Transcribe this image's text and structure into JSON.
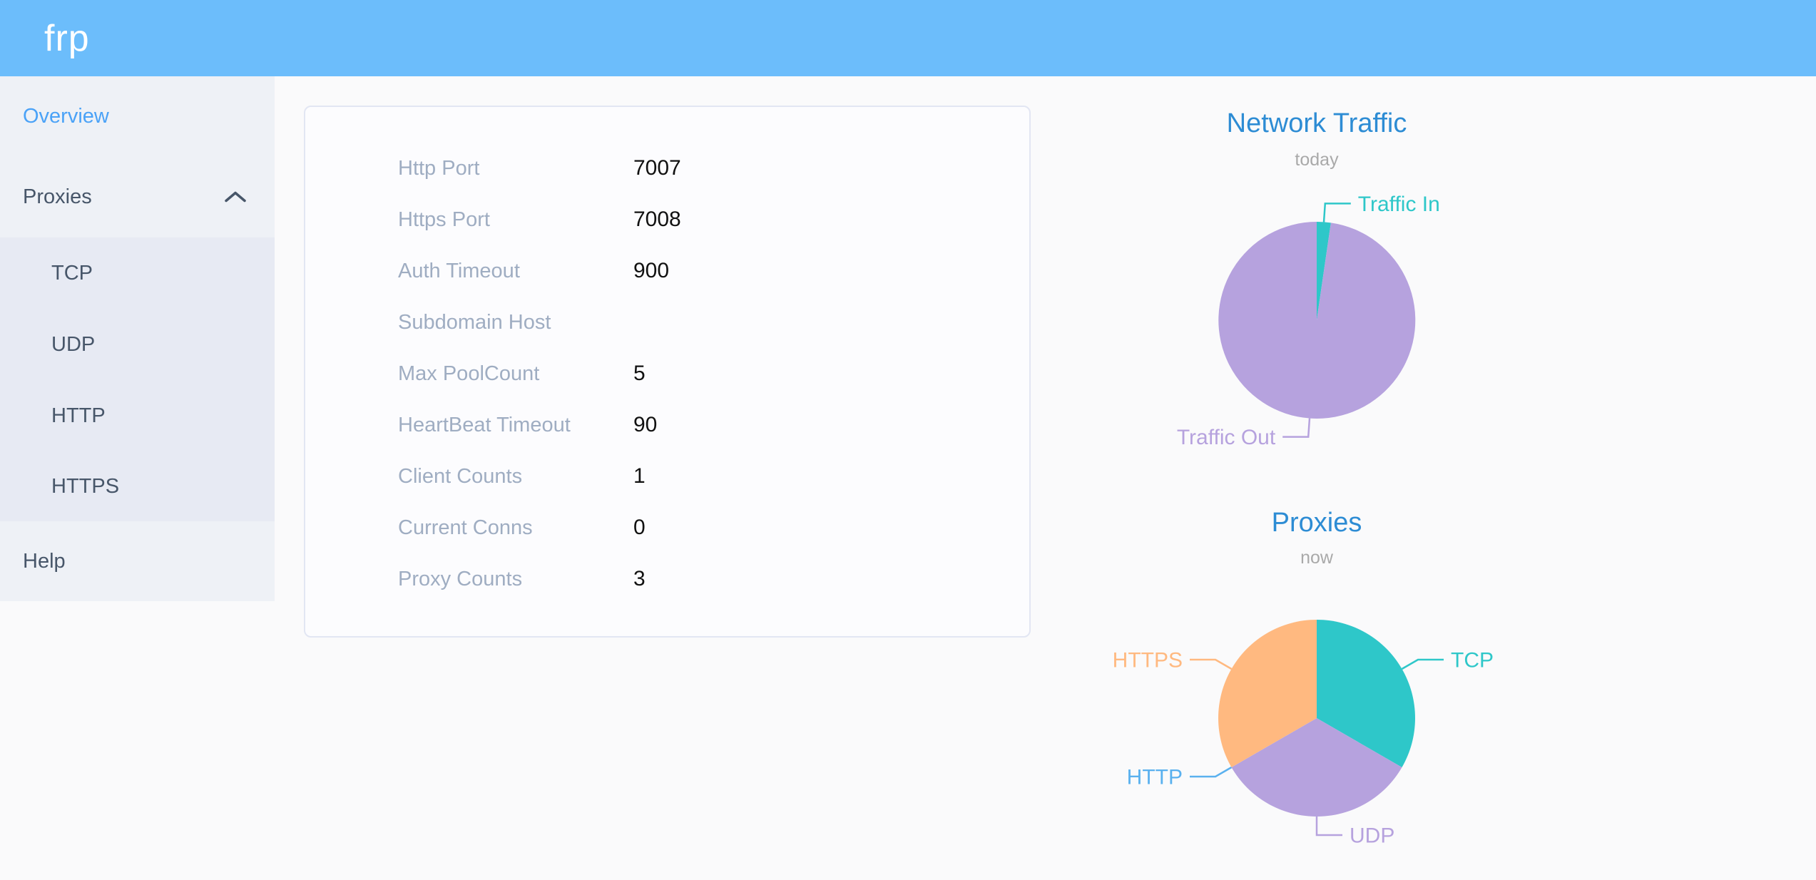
{
  "header": {
    "logo": "frp"
  },
  "sidebar": {
    "items": [
      {
        "label": "Overview",
        "active": true
      },
      {
        "label": "Proxies",
        "expanded": true,
        "children": [
          "TCP",
          "UDP",
          "HTTP",
          "HTTPS"
        ]
      },
      {
        "label": "Help"
      }
    ]
  },
  "overview_card": {
    "rows": [
      {
        "label": "Http Port",
        "value": "7007"
      },
      {
        "label": "Https Port",
        "value": "7008"
      },
      {
        "label": "Auth Timeout",
        "value": "900"
      },
      {
        "label": "Subdomain Host",
        "value": ""
      },
      {
        "label": "Max PoolCount",
        "value": "5"
      },
      {
        "label": "HeartBeat Timeout",
        "value": "90"
      },
      {
        "label": "Client Counts",
        "value": "1"
      },
      {
        "label": "Current Conns",
        "value": "0"
      },
      {
        "label": "Proxy Counts",
        "value": "3"
      }
    ]
  },
  "chart_data": [
    {
      "type": "pie",
      "title": "Network Traffic",
      "subtitle": "today",
      "legend_position": "outside-callout",
      "series": [
        {
          "name": "Traffic In",
          "value": 2.3,
          "color": "#2ec7c9"
        },
        {
          "name": "Traffic Out",
          "value": 97.7,
          "color": "#b6a2de"
        }
      ],
      "note": "values are percent shares estimated from slice angles"
    },
    {
      "type": "pie",
      "title": "Proxies",
      "subtitle": "now",
      "legend_position": "outside-callout",
      "series": [
        {
          "name": "TCP",
          "value": 1,
          "color": "#2ec7c9"
        },
        {
          "name": "UDP",
          "value": 1,
          "color": "#b6a2de"
        },
        {
          "name": "HTTP",
          "value": 0,
          "color": "#5ab1ef"
        },
        {
          "name": "HTTPS",
          "value": 1,
          "color": "#ffb980"
        }
      ],
      "note": "proxy counts by type; HTTP slice is zero-width"
    }
  ],
  "colors": {
    "header_bg": "#6cbdfb",
    "sidebar_bg": "#eef1f6",
    "submenu_bg": "#e7eaf3",
    "sidebar_text": "#475669",
    "active_menu_item": "#4aa2f7",
    "chart_title": "#2d8cd4",
    "chart_subtitle": "#a9a9a9",
    "card_label": "#9fadc2",
    "pie_teal": "#2ec7c9",
    "pie_purple": "#b6a2de",
    "pie_blue": "#5ab1ef",
    "pie_orange": "#ffb980"
  }
}
